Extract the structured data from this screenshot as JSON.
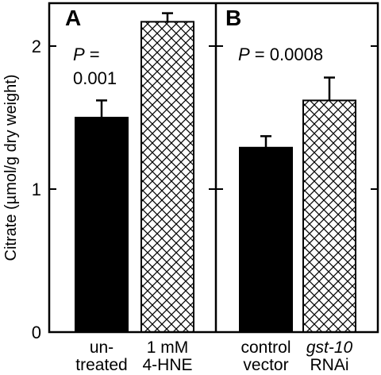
{
  "chart_data": [
    {
      "type": "bar",
      "panel": "A",
      "categories": [
        [
          "un-",
          "treated"
        ],
        [
          "1 mM",
          "4-HNE"
        ]
      ],
      "values": [
        1.5,
        2.17
      ],
      "errors": [
        0.12,
        0.06
      ],
      "fills": [
        "solid",
        "crosshatch"
      ],
      "annotation": {
        "prefix": "P",
        "lines": [
          " =",
          "0.001"
        ]
      },
      "ylabel": "Citrate (µmol/g dry weight)",
      "ylim": [
        0,
        2.3
      ],
      "yticks": [
        0,
        1,
        2
      ],
      "grid": false
    },
    {
      "type": "bar",
      "panel": "B",
      "categories": [
        [
          "control",
          "vector"
        ],
        [
          "gst-10",
          "RNAi"
        ]
      ],
      "category_italic_first_line": [
        false,
        true
      ],
      "values": [
        1.29,
        1.62
      ],
      "errors": [
        0.08,
        0.16
      ],
      "fills": [
        "solid",
        "crosshatch"
      ],
      "annotation": {
        "prefix": "P",
        "lines": [
          " = 0.0008"
        ]
      },
      "ylim": [
        0,
        2.3
      ],
      "grid": false
    }
  ],
  "colors": {
    "bar_solid": "#000000",
    "hatch": "#000000",
    "background": "#ffffff"
  }
}
